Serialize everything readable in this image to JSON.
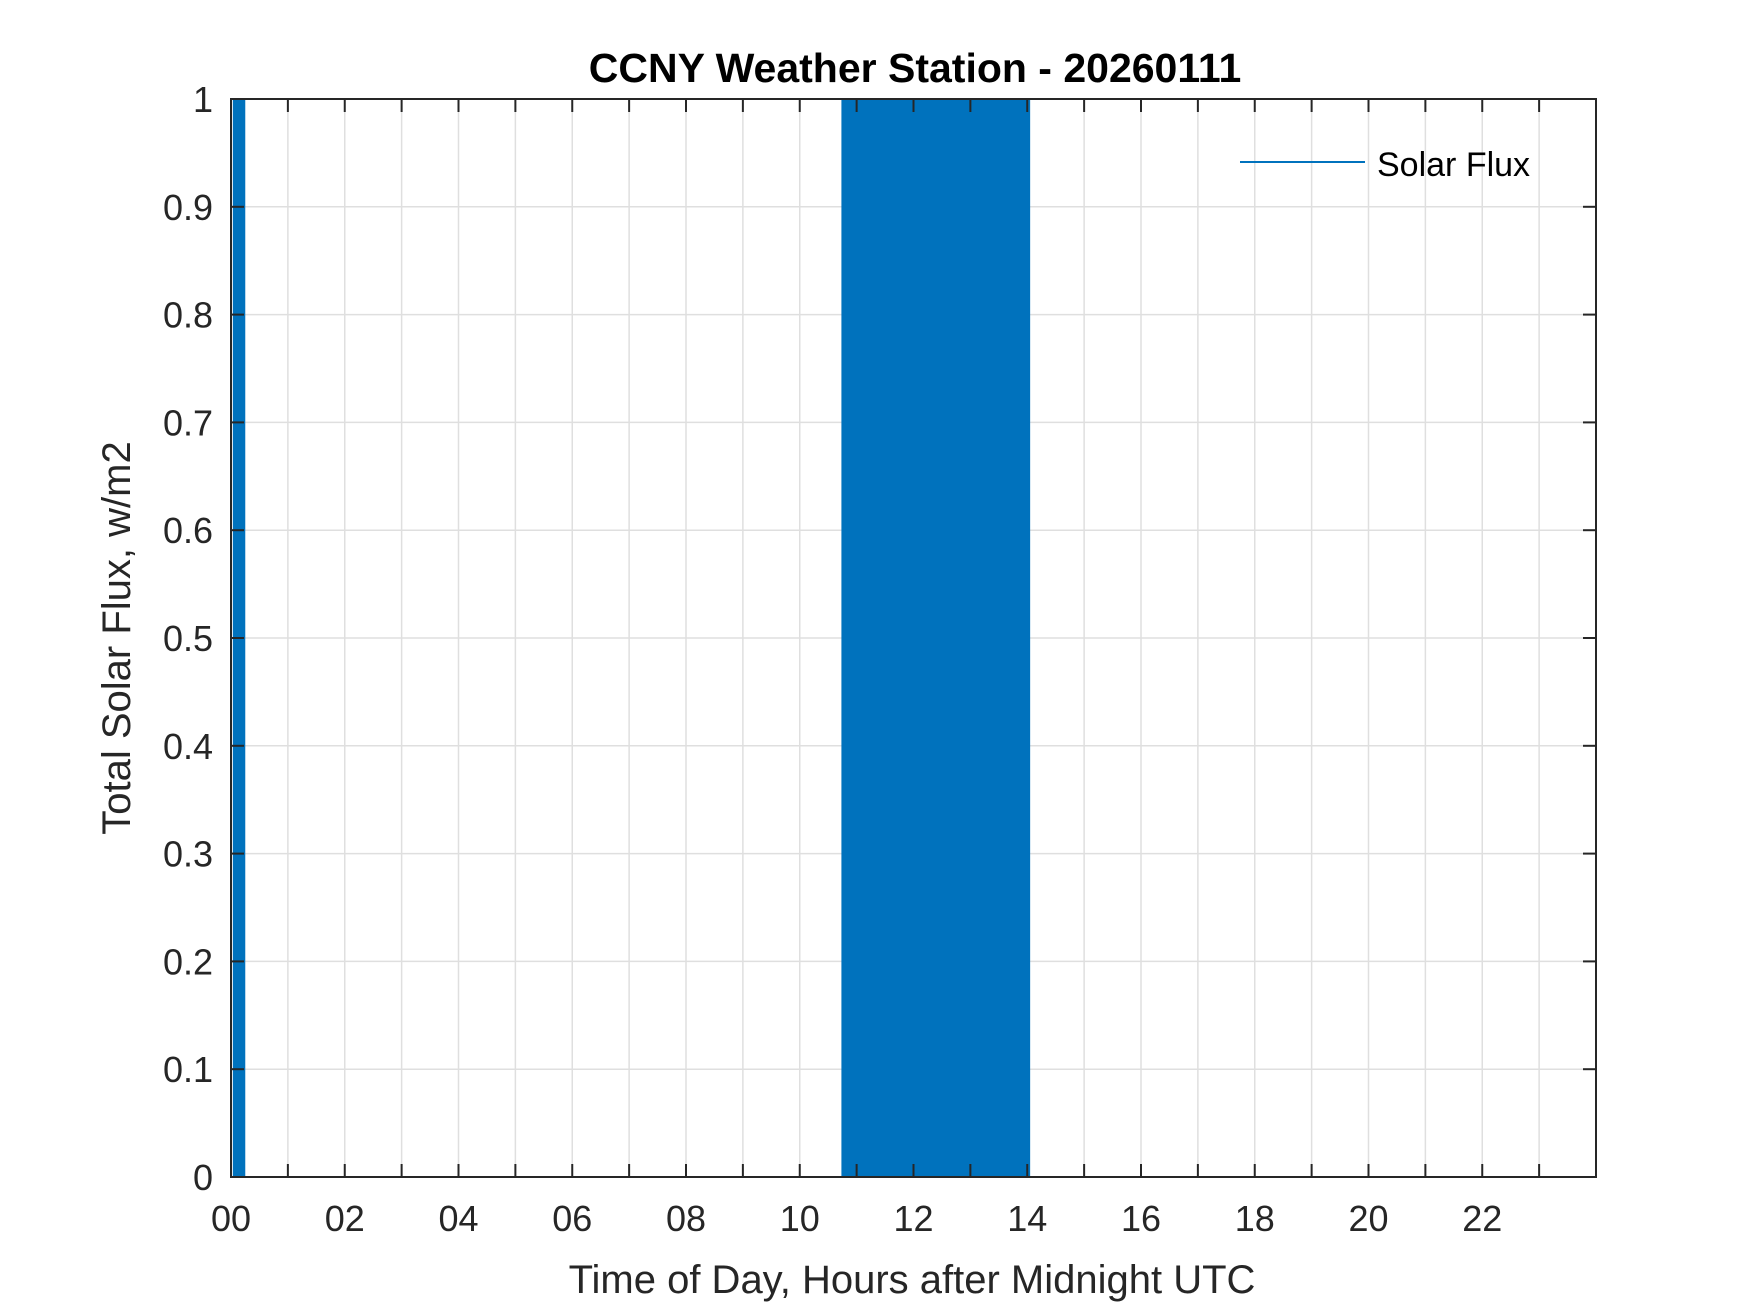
{
  "chart_data": {
    "type": "line",
    "title": "CCNY Weather Station - 20260111",
    "xlabel": "Time of Day, Hours after Midnight UTC",
    "ylabel": "Total Solar Flux, w/m2",
    "xlim": [
      0,
      24
    ],
    "ylim": [
      0,
      1
    ],
    "grid": true,
    "legend_position": "top-right",
    "x_ticks": [
      0,
      2,
      4,
      6,
      8,
      10,
      12,
      14,
      16,
      18,
      20,
      22
    ],
    "x_tick_labels": [
      "00",
      "02",
      "04",
      "06",
      "08",
      "10",
      "12",
      "14",
      "16",
      "18",
      "20",
      "22"
    ],
    "y_ticks": [
      0,
      0.1,
      0.2,
      0.3,
      0.4,
      0.5,
      0.6,
      0.7,
      0.8,
      0.9,
      1
    ],
    "y_tick_labels": [
      "0",
      "0.1",
      "0.2",
      "0.3",
      "0.4",
      "0.5",
      "0.6",
      "0.7",
      "0.8",
      "0.9",
      "1"
    ],
    "series": [
      {
        "name": "Solar Flux",
        "color": "#0072bd",
        "description": "Signal oscillates between 0 and 1 at each sample (1-minute resolution) during the intervals listed",
        "toggle_intervals": [
          [
            0.05,
            0.25
          ],
          [
            10.75,
            14.05
          ]
        ],
        "sample_step_hours": 0.0166667
      }
    ]
  }
}
